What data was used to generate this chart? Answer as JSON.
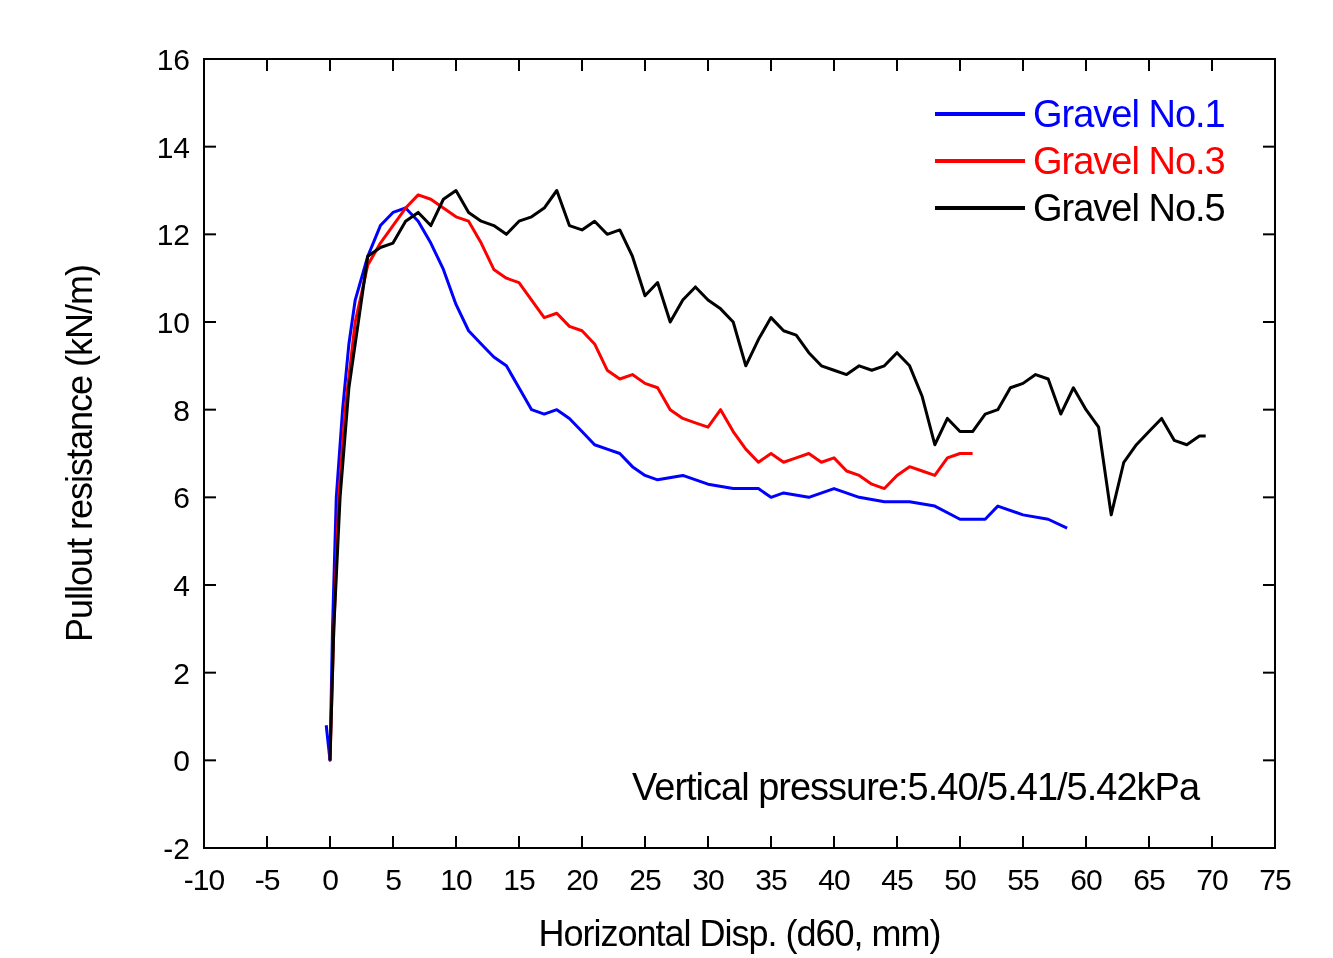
{
  "chart_data": {
    "type": "line",
    "xlabel": "Horizontal Disp. (d60, mm)",
    "ylabel": "Pullout resistance (kN/m)",
    "xlim": [
      -10,
      75
    ],
    "xticks": [
      -10,
      -5,
      0,
      5,
      10,
      15,
      20,
      25,
      30,
      35,
      40,
      45,
      50,
      55,
      60,
      65,
      70,
      75
    ],
    "ylim": [
      -2,
      16
    ],
    "yticks": [
      -2,
      0,
      2,
      4,
      6,
      8,
      10,
      12,
      14,
      16
    ],
    "grid": false,
    "legend": "top right",
    "line_style": "solid",
    "annotations": [
      "Vertical pressure:5.40/5.41/5.42kPa"
    ],
    "series": [
      {
        "name": "Gravel No.1",
        "color": "#0000ff",
        "x": [
          -0.3,
          0,
          0.2,
          0.5,
          1,
          1.5,
          2,
          3,
          4,
          5,
          6,
          7,
          8,
          9,
          10,
          11,
          12,
          13,
          14,
          15,
          16,
          17,
          18,
          19,
          20,
          21,
          22,
          23,
          24,
          25,
          26,
          28,
          30,
          32,
          34,
          35,
          36,
          38,
          40,
          42,
          44,
          46,
          48,
          50,
          52,
          53,
          55,
          57,
          58.5
        ],
        "values": [
          0.8,
          0,
          3,
          6,
          8,
          9.5,
          10.5,
          11.5,
          12.2,
          12.5,
          12.6,
          12.3,
          11.8,
          11.2,
          10.4,
          9.8,
          9.5,
          9.2,
          9.0,
          8.5,
          8.0,
          7.9,
          8.0,
          7.8,
          7.5,
          7.2,
          7.1,
          7.0,
          6.7,
          6.5,
          6.4,
          6.5,
          6.3,
          6.2,
          6.2,
          6.0,
          6.1,
          6.0,
          6.2,
          6.0,
          5.9,
          5.9,
          5.8,
          5.5,
          5.5,
          5.8,
          5.6,
          5.5,
          5.3
        ]
      },
      {
        "name": "Gravel No.3",
        "color": "#ff0000",
        "x": [
          0,
          0.3,
          0.7,
          1.2,
          2,
          3,
          4,
          5,
          6,
          7,
          8,
          9,
          10,
          11,
          12,
          13,
          14,
          15,
          16,
          17,
          18,
          19,
          20,
          21,
          22,
          23,
          24,
          25,
          26,
          27,
          28,
          29,
          30,
          31,
          32,
          33,
          34,
          35,
          36,
          37,
          38,
          39,
          40,
          41,
          42,
          43,
          44,
          45,
          46,
          47,
          48,
          49,
          50,
          51
        ],
        "values": [
          0,
          3,
          6,
          8,
          10,
          11.3,
          11.8,
          12.2,
          12.6,
          12.9,
          12.8,
          12.6,
          12.4,
          12.3,
          11.8,
          11.2,
          11.0,
          10.9,
          10.5,
          10.1,
          10.2,
          9.9,
          9.8,
          9.5,
          8.9,
          8.7,
          8.8,
          8.6,
          8.5,
          8.0,
          7.8,
          7.7,
          7.6,
          8.0,
          7.5,
          7.1,
          6.8,
          7.0,
          6.8,
          6.9,
          7.0,
          6.8,
          6.9,
          6.6,
          6.5,
          6.3,
          6.2,
          6.5,
          6.7,
          6.6,
          6.5,
          6.9,
          7.0,
          7.0
        ]
      },
      {
        "name": "Gravel No.5",
        "color": "#000000",
        "x": [
          0,
          0.3,
          0.8,
          1.5,
          2.5,
          3,
          4,
          5,
          6,
          7,
          8,
          9,
          10,
          11,
          12,
          13,
          14,
          15,
          16,
          17,
          18,
          19,
          20,
          21,
          22,
          23,
          24,
          25,
          26,
          27,
          28,
          29,
          30,
          31,
          32,
          33,
          34,
          35,
          36,
          37,
          38,
          39,
          40,
          41,
          42,
          43,
          44,
          45,
          46,
          47,
          48,
          49,
          50,
          51,
          52,
          53,
          54,
          55,
          56,
          57,
          58,
          59,
          60,
          61,
          62,
          63,
          64,
          65,
          66,
          67,
          68,
          69,
          69.5
        ],
        "values": [
          0,
          3,
          6,
          8.5,
          10.5,
          11.5,
          11.7,
          11.8,
          12.3,
          12.5,
          12.2,
          12.8,
          13.0,
          12.5,
          12.3,
          12.2,
          12.0,
          12.3,
          12.4,
          12.6,
          13.0,
          12.2,
          12.1,
          12.3,
          12.0,
          12.1,
          11.5,
          10.6,
          10.9,
          10.0,
          10.5,
          10.8,
          10.5,
          10.3,
          10.0,
          9.0,
          9.6,
          10.1,
          9.8,
          9.7,
          9.3,
          9.0,
          8.9,
          8.8,
          9.0,
          8.9,
          9.0,
          9.3,
          9.0,
          8.3,
          7.2,
          7.8,
          7.5,
          7.5,
          7.9,
          8.0,
          8.5,
          8.6,
          8.8,
          8.7,
          7.9,
          8.5,
          8.0,
          7.6,
          5.6,
          6.8,
          7.2,
          7.5,
          7.8,
          7.3,
          7.2,
          7.4,
          7.4
        ]
      }
    ]
  }
}
